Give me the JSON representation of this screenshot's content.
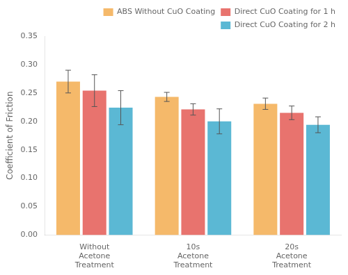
{
  "chart_data": {
    "type": "bar",
    "categories": [
      "Without\nAcetone\nTreatment",
      "10s\nAcetone\nTreatment",
      "20s\nAcetone\nTreatment"
    ],
    "series": [
      {
        "name": "ABS Without CuO Coating",
        "color": "#F5B96A",
        "values": [
          0.27,
          0.243,
          0.231
        ],
        "errors": [
          0.02,
          0.008,
          0.01
        ]
      },
      {
        "name": "Direct CuO Coating for 1 h",
        "color": "#E8736E",
        "values": [
          0.254,
          0.221,
          0.215
        ],
        "errors": [
          0.028,
          0.01,
          0.012
        ]
      },
      {
        "name": "Direct CuO Coating for 2 h",
        "color": "#5BB8D4",
        "values": [
          0.224,
          0.2,
          0.194
        ],
        "errors": [
          0.03,
          0.022,
          0.014
        ]
      }
    ],
    "ylabel": "Coefficient of Friction",
    "ylim": [
      0,
      0.35
    ],
    "yticks": [
      {
        "value": 0,
        "label": "0.00"
      },
      0.05,
      {
        "value": 0.1,
        "label": "0.10"
      },
      0.15,
      {
        "value": 0.2,
        "label": "0.20"
      },
      0.25,
      {
        "value": 0.3,
        "label": "0.30"
      },
      0.35
    ],
    "grid": false,
    "legend": "upper right"
  }
}
